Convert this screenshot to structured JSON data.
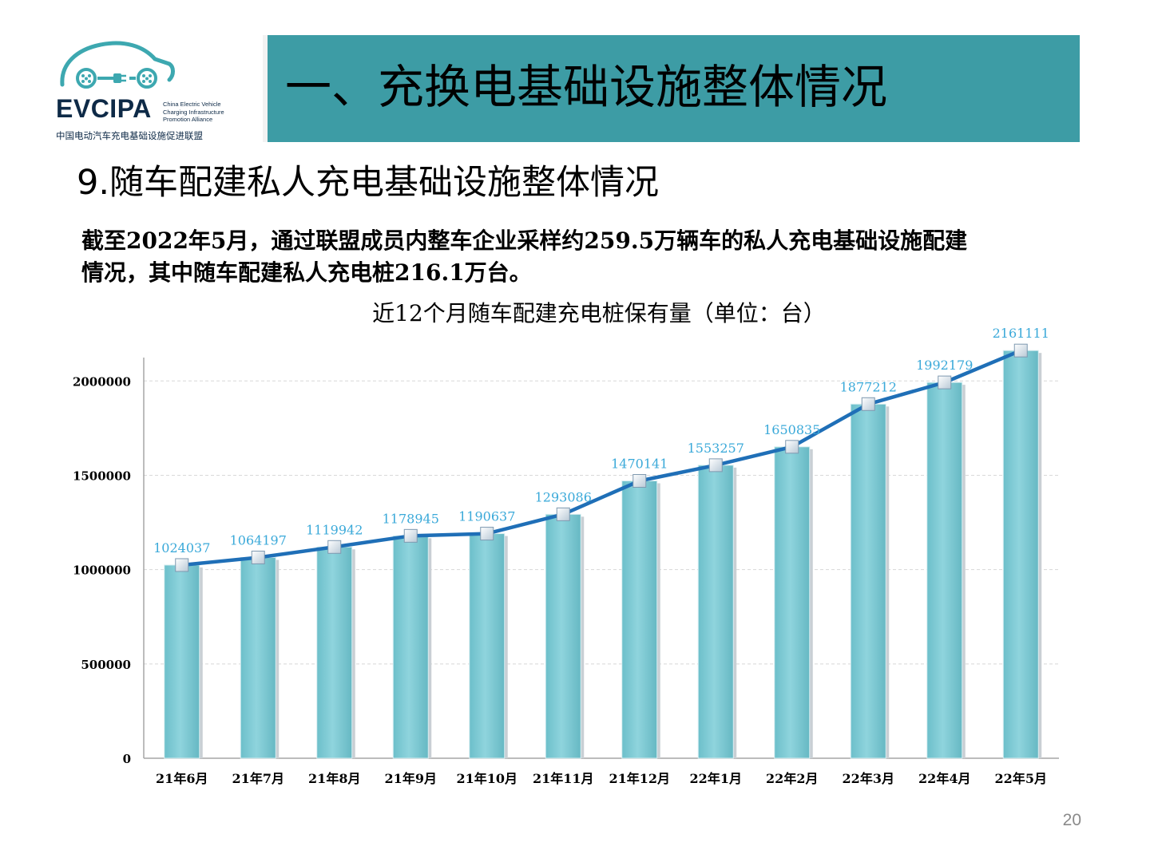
{
  "logo": {
    "name": "EVCIPA",
    "english": "China Electric Vehicle\nCharging Infrastructure\nPromotion Alliance",
    "chinese": "中国电动汽车充电基础设施促进联盟",
    "color": "#0e2a47",
    "accent": "#3da8b0"
  },
  "banner": {
    "title": "一、充换电基础设施整体情况",
    "color": "#3d9ca5"
  },
  "section_title": "9.随车配建私人充电基础设施整体情况",
  "description": {
    "line1": "截至2022年5月，通过联盟成员内整车企业采样约259.5万辆车的私人充电基础设施配建",
    "line2": "情况，其中随车配建私人充电桩216.1万台。"
  },
  "chart_data": {
    "type": "bar",
    "title": "近12个月随车配建充电桩保有量（单位：台）",
    "categories": [
      "21年6月",
      "21年7月",
      "21年8月",
      "21年9月",
      "21年10月",
      "21年11月",
      "21年12月",
      "22年1月",
      "22年2月",
      "22年3月",
      "22年4月",
      "22年5月"
    ],
    "series": [
      {
        "type": "bar",
        "values": [
          1024037,
          1064197,
          1119942,
          1178945,
          1190637,
          1293086,
          1470141,
          1553257,
          1650835,
          1877212,
          1992179,
          2161111
        ],
        "color": "#7ccad4"
      },
      {
        "type": "line",
        "values": [
          1024037,
          1064197,
          1119942,
          1178945,
          1190637,
          1293086,
          1470141,
          1553257,
          1650835,
          1877212,
          1992179,
          2161111
        ],
        "color": "#1f6fb7"
      }
    ],
    "data_labels": [
      "1024037",
      "1064197",
      "1119942",
      "1178945",
      "1190637",
      "1293086",
      "1470141",
      "1553257",
      "1650835",
      "1877212",
      "1992179",
      "2161111"
    ],
    "data_label_color": "#3aa9d9",
    "y_ticks": [
      0,
      500000,
      1000000,
      1500000,
      2000000
    ],
    "y_tick_labels": [
      "0",
      "500000",
      "1000000",
      "1500000",
      "2000000"
    ],
    "ylim": [
      0,
      2200000
    ],
    "grid": true,
    "legend": "none"
  },
  "page_number": "20"
}
